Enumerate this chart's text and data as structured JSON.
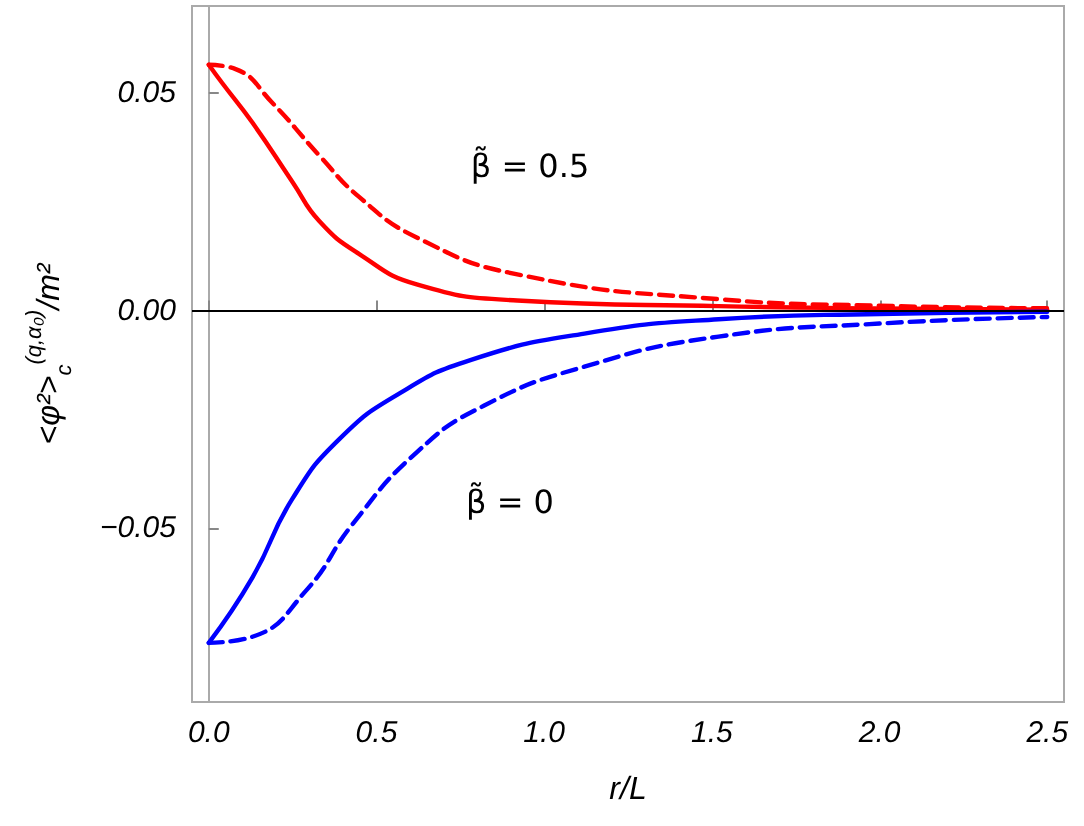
{
  "chart_data": {
    "type": "line",
    "xlabel": "r/L",
    "ylabel": "<φ²>$_{c}$$^{(q,α₀)}$/m²",
    "xlim": [
      -0.05,
      2.55
    ],
    "ylim": [
      -0.09,
      0.07
    ],
    "xticks": [
      {
        "value": 0,
        "label": "0.0"
      },
      {
        "value": 0.5,
        "label": "0.5"
      },
      {
        "value": 1,
        "label": "1.0"
      },
      {
        "value": 1.5,
        "label": "1.5"
      },
      {
        "value": 2,
        "label": "2.0"
      },
      {
        "value": 2.5,
        "label": "2.5"
      }
    ],
    "yticks": [
      {
        "value": -0.05,
        "label": "−0.05"
      },
      {
        "value": 0,
        "label": "0.00"
      },
      {
        "value": 0.05,
        "label": "0.05"
      }
    ],
    "grid": false,
    "marker": "none",
    "series": [
      {
        "color": "#ff0000",
        "line_style": "solid",
        "x": [
          0,
          0.04,
          0.13,
          0.25,
          0.33,
          0.45,
          0.62,
          0.92,
          1.52,
          2.0,
          2.5
        ],
        "values": [
          0.0565,
          0.0523,
          0.0432,
          0.0295,
          0.0205,
          0.0129,
          0.006,
          0.0023,
          0.001,
          0.0005,
          0.0002
        ]
      },
      {
        "color": "#ff0000",
        "line_style": "dashed",
        "x": [
          0,
          0.08,
          0.19,
          0.33,
          0.45,
          0.62,
          0.92,
          1.52,
          2.0,
          2.5
        ],
        "values": [
          0.0565,
          0.0555,
          0.0477,
          0.0356,
          0.026,
          0.0168,
          0.0083,
          0.0026,
          0.0011,
          0.0005
        ]
      },
      {
        "color": "#0000ff",
        "line_style": "solid",
        "x": [
          0,
          0.13,
          0.25,
          0.39,
          0.57,
          0.78,
          1.12,
          1.52,
          2.0,
          2.5
        ],
        "values": [
          -0.0764,
          -0.0614,
          -0.0432,
          -0.0295,
          -0.019,
          -0.0114,
          -0.0053,
          -0.002,
          -0.0008,
          -0.0003
        ]
      },
      {
        "color": "#0000ff",
        "line_style": "dashed",
        "x": [
          0,
          0.13,
          0.29,
          0.43,
          0.62,
          0.82,
          1.12,
          1.52,
          2.0,
          2.5
        ],
        "values": [
          -0.0764,
          -0.075,
          -0.0644,
          -0.049,
          -0.0326,
          -0.0219,
          -0.0129,
          -0.006,
          -0.003,
          -0.0015
        ]
      }
    ],
    "ref_lines": [
      {
        "axis": "y",
        "value": 0,
        "color": "#000000",
        "line_style": "solid"
      }
    ],
    "annotations": [
      "β̃ = 0.5",
      "β̃ = 0"
    ]
  }
}
